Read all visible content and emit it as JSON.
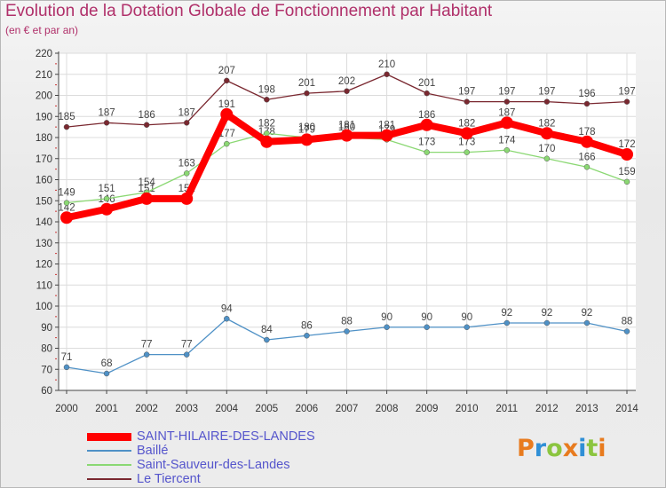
{
  "title": "Evolution de la Dotation Globale de Fonctionnement par Habitant",
  "subtitle": "(en € et par an)",
  "logo": {
    "letters": [
      "P",
      "r",
      "o",
      "x",
      "i",
      "t",
      "i"
    ],
    "colors": [
      "#e87b1e",
      "#2f8fd6",
      "#8bc53f",
      "#e87b1e",
      "#2f8fd6",
      "#8bc53f",
      "#e87b1e"
    ]
  },
  "chart_data": {
    "type": "line",
    "title": "Evolution de la Dotation Globale de Fonctionnement par Habitant",
    "subtitle": "(en € et par an)",
    "x": [
      2000,
      2001,
      2002,
      2003,
      2004,
      2005,
      2006,
      2007,
      2008,
      2009,
      2010,
      2011,
      2012,
      2013,
      2014
    ],
    "ylim": [
      60,
      220
    ],
    "yticks": [
      60,
      70,
      80,
      90,
      100,
      110,
      120,
      130,
      140,
      150,
      160,
      170,
      180,
      190,
      200,
      210,
      220
    ],
    "grid": true,
    "legend": "bottom-left",
    "series": [
      {
        "name": "SAINT-HILAIRE-DES-LANDES",
        "color": "#ff0000",
        "highlight": true,
        "values": [
          142,
          146,
          151,
          151,
          191,
          178,
          179,
          181,
          181,
          186,
          182,
          187,
          182,
          178,
          172
        ]
      },
      {
        "name": "Baillé",
        "color": "#4f91c6",
        "highlight": false,
        "values": [
          71,
          68,
          77,
          77,
          94,
          84,
          86,
          88,
          90,
          90,
          90,
          92,
          92,
          92,
          88
        ]
      },
      {
        "name": "Saint-Sauveur-des-Landes",
        "color": "#8bd873",
        "highlight": false,
        "values": [
          149,
          151,
          154,
          163,
          177,
          182,
          180,
          180,
          179,
          173,
          173,
          174,
          170,
          166,
          159
        ]
      },
      {
        "name": "Le Tiercent",
        "color": "#7a2830",
        "highlight": false,
        "values": [
          185,
          187,
          186,
          187,
          207,
          198,
          201,
          202,
          210,
          201,
          197,
          197,
          197,
          196,
          197
        ]
      }
    ]
  }
}
